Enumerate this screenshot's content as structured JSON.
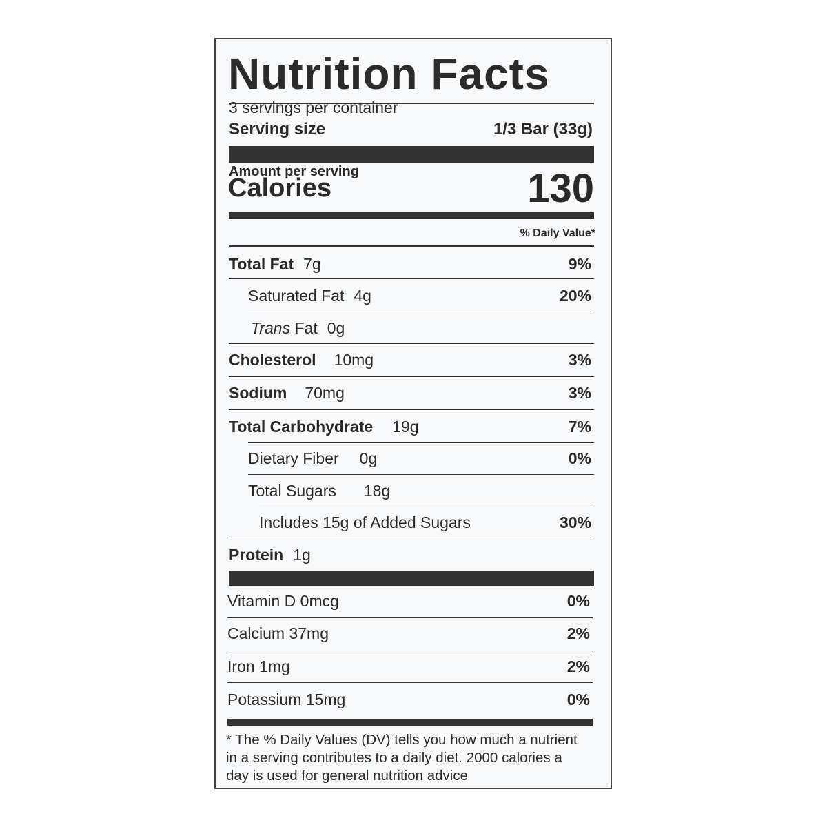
{
  "title": "Nutrition Facts",
  "servings_per_container": "3 servings per container",
  "serving_size_label": "Serving size",
  "serving_size_value": "1/3 Bar (33g)",
  "amount_per_serving": "Amount per serving",
  "calories_label": "Calories",
  "calories_value": "130",
  "daily_value_header": "% Daily Value*",
  "nutrients": [
    {
      "name": "Total Fat",
      "amount": "7g",
      "dv": "9%"
    },
    {
      "name": "Saturated Fat",
      "amount": "4g",
      "dv": "20%"
    },
    {
      "name": "Trans",
      "name_suffix": " Fat",
      "amount": "0g",
      "dv": ""
    },
    {
      "name": "Cholesterol",
      "amount": "10mg",
      "dv": "3%"
    },
    {
      "name": "Sodium",
      "amount": "70mg",
      "dv": "3%"
    },
    {
      "name": "Total Carbohydrate",
      "amount": "19g",
      "dv": "7%"
    },
    {
      "name": "Dietary Fiber",
      "amount": "0g",
      "dv": "0%"
    },
    {
      "name": "Total Sugars",
      "amount": "18g",
      "dv": ""
    },
    {
      "name": "Includes 15g of Added Sugars",
      "amount": "",
      "dv": "30%"
    },
    {
      "name": "Protein",
      "amount": "1g",
      "dv": ""
    }
  ],
  "vitamins": [
    {
      "name": "Vitamin D 0mcg",
      "dv": "0%"
    },
    {
      "name": "Calcium 37mg",
      "dv": "2%"
    },
    {
      "name": "Iron 1mg",
      "dv": "2%"
    },
    {
      "name": "Potassium 15mg",
      "dv": "0%"
    }
  ],
  "footnote": "* The % Daily Values (DV) tells you how much a nutrient in a serving contributes to a daily diet. 2000 calories a day is used for general nutrition advice"
}
